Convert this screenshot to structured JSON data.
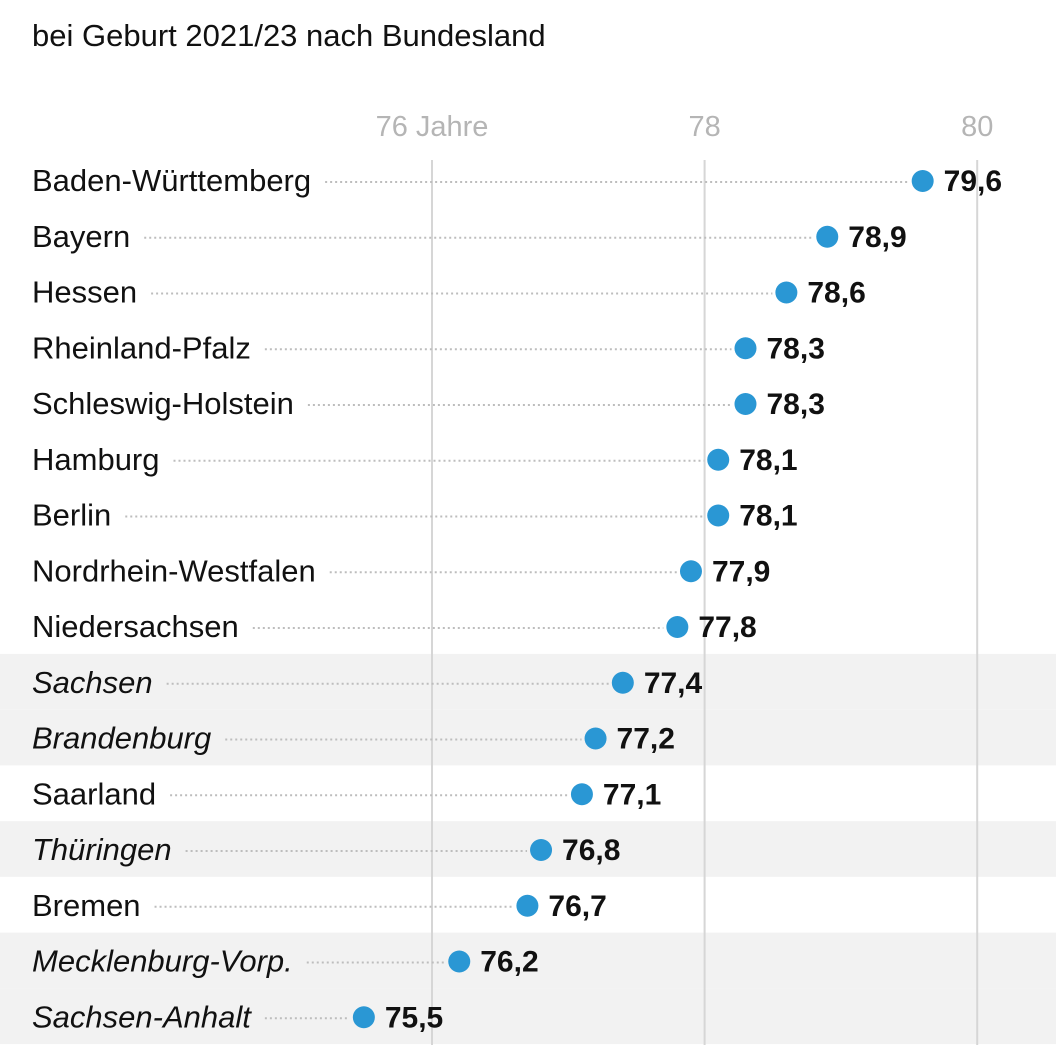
{
  "subtitle": "bei Geburt 2021/23 nach Bundesland",
  "chart_data": {
    "type": "dot",
    "xlim": [
      75.5,
      80
    ],
    "ticks": [
      {
        "value": 76,
        "label": "76 Jahre"
      },
      {
        "value": 78,
        "label": "78"
      },
      {
        "value": 80,
        "label": "80"
      }
    ],
    "grid": true,
    "dot_color": "#2a97d4",
    "highlight_band_color": "#f2f2f2",
    "rows": [
      {
        "label": "Baden-Württemberg",
        "value": 79.6,
        "value_label": "79,6",
        "highlighted": false
      },
      {
        "label": "Bayern",
        "value": 78.9,
        "value_label": "78,9",
        "highlighted": false
      },
      {
        "label": "Hessen",
        "value": 78.6,
        "value_label": "78,6",
        "highlighted": false
      },
      {
        "label": "Rheinland-Pfalz",
        "value": 78.3,
        "value_label": "78,3",
        "highlighted": false
      },
      {
        "label": "Schleswig-Holstein",
        "value": 78.3,
        "value_label": "78,3",
        "highlighted": false
      },
      {
        "label": "Hamburg",
        "value": 78.1,
        "value_label": "78,1",
        "highlighted": false
      },
      {
        "label": "Berlin",
        "value": 78.1,
        "value_label": "78,1",
        "highlighted": false
      },
      {
        "label": "Nordrhein-Westfalen",
        "value": 77.9,
        "value_label": "77,9",
        "highlighted": false
      },
      {
        "label": "Niedersachsen",
        "value": 77.8,
        "value_label": "77,8",
        "highlighted": false
      },
      {
        "label": "Sachsen",
        "value": 77.4,
        "value_label": "77,4",
        "highlighted": true
      },
      {
        "label": "Brandenburg",
        "value": 77.2,
        "value_label": "77,2",
        "highlighted": true
      },
      {
        "label": "Saarland",
        "value": 77.1,
        "value_label": "77,1",
        "highlighted": false
      },
      {
        "label": "Thüringen",
        "value": 76.8,
        "value_label": "76,8",
        "highlighted": true
      },
      {
        "label": "Bremen",
        "value": 76.7,
        "value_label": "76,7",
        "highlighted": false
      },
      {
        "label": "Mecklenburg-Vorp.",
        "value": 76.2,
        "value_label": "76,2",
        "highlighted": true
      },
      {
        "label": "Sachsen-Anhalt",
        "value": 75.5,
        "value_label": "75,5",
        "highlighted": true
      }
    ]
  }
}
